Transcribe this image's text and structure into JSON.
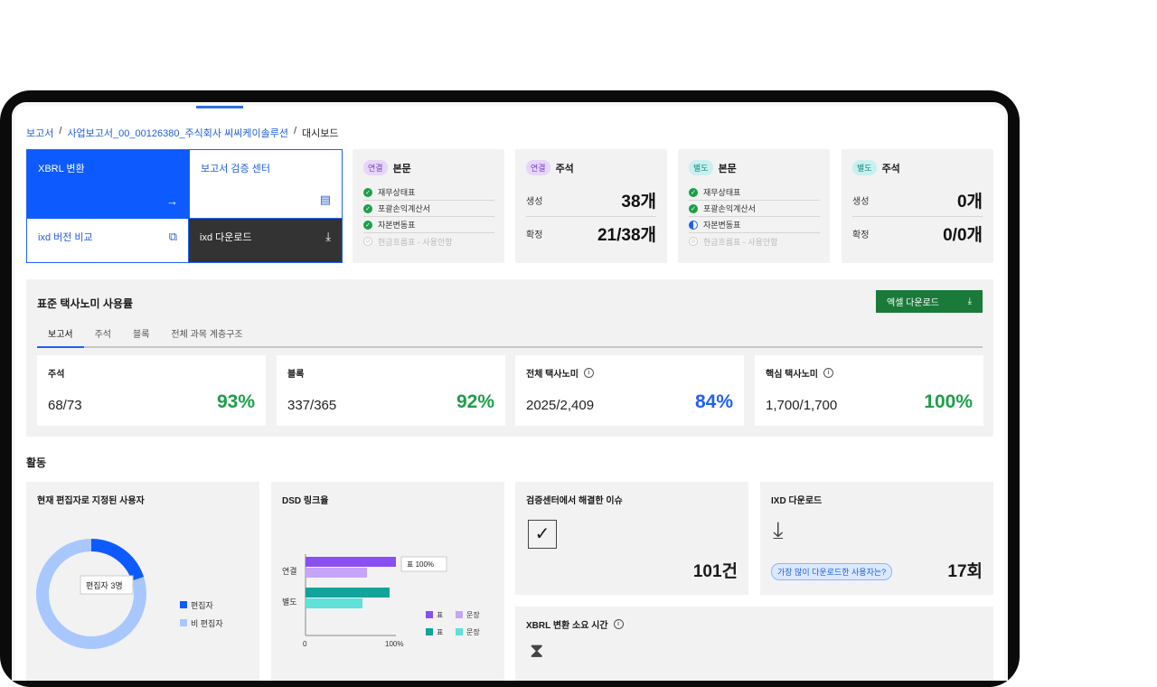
{
  "breadcrumb": [
    "보고서",
    "사업보고서_00_00126380_주식회사 씨씨케이솔루션",
    "대시보드"
  ],
  "actions": {
    "xbrl": "XBRL 변환",
    "verify": "보고서 검증 센터",
    "compare": "ixd 버전 비교",
    "download": "ixd 다운로드"
  },
  "cards": [
    {
      "tag": "연결",
      "title": "본문",
      "checks": [
        {
          "label": "재무상태표",
          "state": "done"
        },
        {
          "label": "포괄손익계산서",
          "state": "done"
        },
        {
          "label": "자본변동표",
          "state": "done"
        },
        {
          "label": "현금흐름표 - 사용안함",
          "state": "off"
        }
      ]
    },
    {
      "tag": "연결",
      "title": "주석",
      "rows": [
        {
          "k": "생성",
          "v": "38개"
        },
        {
          "k": "확정",
          "v": "21/38개"
        }
      ]
    },
    {
      "tag": "별도",
      "title": "본문",
      "checks": [
        {
          "label": "재무상태표",
          "state": "done"
        },
        {
          "label": "포괄손익계산서",
          "state": "done"
        },
        {
          "label": "자본변동표",
          "state": "half"
        },
        {
          "label": "현금흐름표 - 사용안함",
          "state": "off"
        }
      ]
    },
    {
      "tag": "별도",
      "title": "주석",
      "rows": [
        {
          "k": "생성",
          "v": "0개"
        },
        {
          "k": "확정",
          "v": "0/0개"
        }
      ]
    }
  ],
  "taxonomy": {
    "title": "표준 택사노미 사용률",
    "excel": "엑셀 다운로드",
    "tabs": [
      "보고서",
      "주석",
      "블록",
      "전체 과목 계층구조"
    ],
    "stats": [
      {
        "label": "주석",
        "value": "68/73",
        "pct": "93%",
        "color": "green",
        "info": false
      },
      {
        "label": "블록",
        "value": "337/365",
        "pct": "92%",
        "color": "green",
        "info": false
      },
      {
        "label": "전체 택사노미",
        "value": "2025/2,409",
        "pct": "84%",
        "color": "blue",
        "info": true
      },
      {
        "label": "핵심 택사노미",
        "value": "1,700/1,700",
        "pct": "100%",
        "color": "green",
        "info": true
      }
    ]
  },
  "activity": {
    "title": "활동",
    "editors": {
      "title": "현재 편집자로 지정된 사용자",
      "tooltip": "편집자  3명",
      "legend": [
        "편집자",
        "비 편집자"
      ],
      "editor_share": 0.2
    },
    "dsd": {
      "title": "DSD 링크율",
      "groups": [
        "연결",
        "별도"
      ],
      "tooltip": "표  100%",
      "axis": [
        "0",
        "100%"
      ],
      "legend": [
        "표",
        "문장",
        "표",
        "문장"
      ]
    },
    "issues": {
      "title": "검증센터에서 해결한 이슈",
      "value": "101건"
    },
    "ixd": {
      "title": "IXD 다운로드",
      "pill": "가장 많이 다운로드한 사용자는?",
      "value": "17회"
    },
    "xbrl_time": {
      "title": "XBRL 변환 소요 시간"
    }
  },
  "chart_data": {
    "type": "bar",
    "title": "DSD 링크율",
    "categories": [
      "연결",
      "별도"
    ],
    "series": [
      {
        "name": "표",
        "values": [
          100,
          93
        ]
      },
      {
        "name": "문장",
        "values": [
          68,
          63
        ]
      }
    ],
    "xlim": [
      0,
      100
    ]
  },
  "colors": {
    "primary": "#0d5bff",
    "green": "#1e9e4a",
    "purple": "#8a4ff0",
    "teal": "#14a39a"
  }
}
